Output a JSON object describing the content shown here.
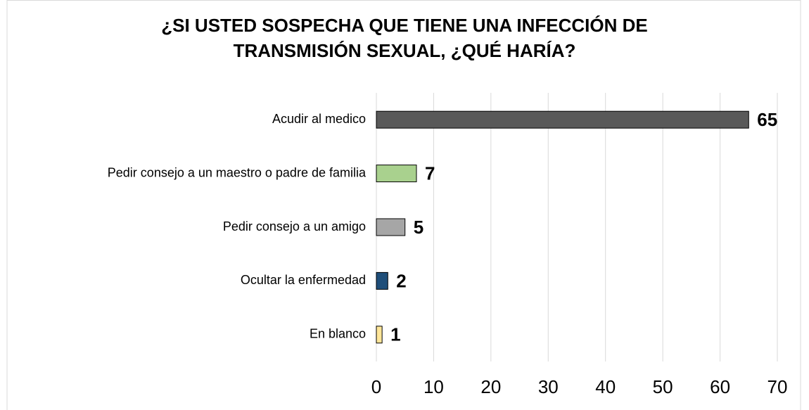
{
  "chart_data": {
    "type": "bar",
    "orientation": "horizontal",
    "title": "¿SI USTED SOSPECHA QUE TIENE UNA INFECCIÓN DE TRANSMISIÓN SEXUAL, ¿QUÉ HARÍA?",
    "categories": [
      "Acudir al medico",
      "Pedir consejo a un maestro o padre de familia",
      "Pedir consejo a un amigo",
      "Ocultar la enfermedad",
      "En blanco"
    ],
    "values": [
      65,
      7,
      5,
      2,
      1
    ],
    "colors": [
      "#595959",
      "#a9d18e",
      "#a6a6a6",
      "#1f4e79",
      "#ffe699"
    ],
    "xlim": [
      0,
      70
    ],
    "xticks": [
      0,
      10,
      20,
      30,
      40,
      50,
      60,
      70
    ],
    "grid": true
  }
}
